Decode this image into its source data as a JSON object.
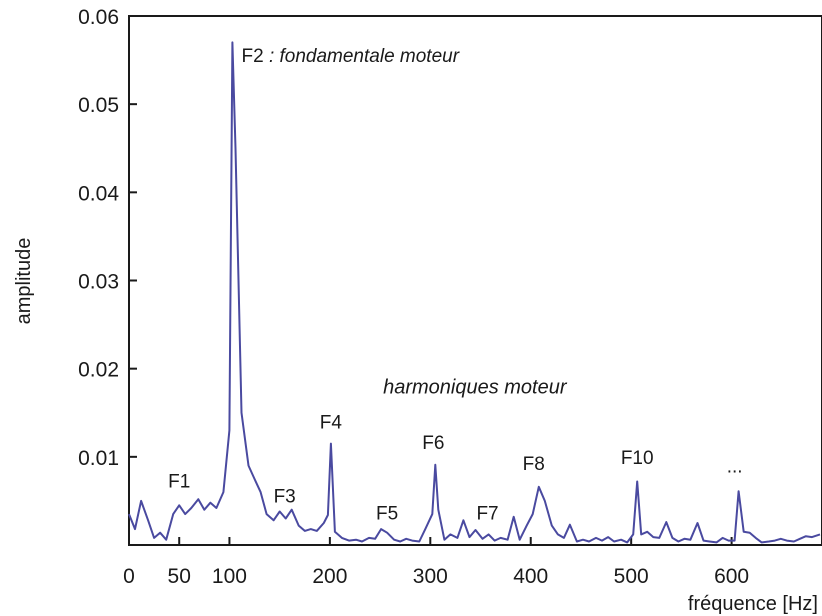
{
  "chart_data": {
    "type": "line",
    "xlabel": "fréquence [Hz]",
    "ylabel": "amplitude",
    "xlim": [
      0,
      690
    ],
    "ylim": [
      0,
      0.06
    ],
    "xticks": [
      0,
      50,
      100,
      200,
      300,
      400,
      500,
      600
    ],
    "xtick_labels": [
      "0",
      "50",
      "100",
      "200",
      "300",
      "400",
      "500",
      "600"
    ],
    "yticks": [
      0.01,
      0.02,
      0.03,
      0.04,
      0.05,
      0.06
    ],
    "ytick_labels": [
      "0.01",
      "0.02",
      "0.03",
      "0.04",
      "0.05",
      "0.06"
    ],
    "grid": false,
    "line_color": "#4a4aa0",
    "series": [
      {
        "x": [
          0,
          6,
          12,
          19,
          25,
          31,
          37,
          44,
          50,
          56,
          62,
          69,
          75,
          81,
          87,
          94,
          100,
          103,
          106,
          112,
          119,
          125,
          131,
          137,
          144,
          150,
          156,
          162,
          169,
          175,
          181,
          187,
          194,
          198,
          201,
          205,
          212,
          219,
          226,
          232,
          239,
          245,
          251,
          257,
          264,
          270,
          276,
          282,
          289,
          295,
          302,
          305,
          308,
          314,
          320,
          327,
          333,
          339,
          345,
          352,
          358,
          364,
          370,
          377,
          383,
          389,
          396,
          402,
          408,
          414,
          421,
          427,
          433,
          439,
          446,
          452,
          458,
          465,
          471,
          477,
          483,
          490,
          496,
          502,
          506,
          510,
          516,
          522,
          528,
          535,
          541,
          547,
          553,
          559,
          566,
          572,
          578,
          585,
          591,
          597,
          603,
          607,
          612,
          618,
          624,
          630,
          637,
          643,
          649,
          655,
          662,
          668,
          674,
          680,
          688
        ],
        "y": [
          0.0035,
          0.0018,
          0.005,
          0.0028,
          0.0008,
          0.0014,
          0.0006,
          0.0035,
          0.0045,
          0.0035,
          0.0042,
          0.0052,
          0.004,
          0.0048,
          0.0042,
          0.006,
          0.013,
          0.057,
          0.045,
          0.015,
          0.009,
          0.0075,
          0.006,
          0.0035,
          0.0028,
          0.0038,
          0.003,
          0.004,
          0.0022,
          0.0016,
          0.0018,
          0.0016,
          0.0025,
          0.0034,
          0.0115,
          0.0015,
          0.0008,
          0.0005,
          0.0006,
          0.0004,
          0.0008,
          0.0007,
          0.0018,
          0.0014,
          0.0006,
          0.0004,
          0.0007,
          0.0005,
          0.0004,
          0.0018,
          0.0035,
          0.0091,
          0.004,
          0.0006,
          0.0012,
          0.0008,
          0.0028,
          0.0009,
          0.0017,
          0.0007,
          0.0012,
          0.0005,
          0.0008,
          0.0006,
          0.0032,
          0.0006,
          0.0022,
          0.0035,
          0.0066,
          0.005,
          0.0022,
          0.0012,
          0.0008,
          0.0023,
          0.0004,
          0.0006,
          0.0004,
          0.0008,
          0.0005,
          0.0009,
          0.0004,
          0.0006,
          0.0003,
          0.0012,
          0.0072,
          0.0012,
          0.0015,
          0.0009,
          0.0008,
          0.0026,
          0.0008,
          0.0004,
          0.0007,
          0.0006,
          0.0025,
          0.0005,
          0.0004,
          0.0003,
          0.0008,
          0.0005,
          0.0005,
          0.0061,
          0.0015,
          0.0014,
          0.0008,
          0.0003,
          0.0004,
          0.0005,
          0.0007,
          0.0005,
          0.0004,
          0.0007,
          0.001,
          0.0009,
          0.0012
        ]
      }
    ],
    "annotations": [
      {
        "text": "F1",
        "x": 50,
        "y": 0.0065,
        "italic": false
      },
      {
        "text": "F2 : fondamentale moteur",
        "x": 112,
        "y": 0.0548,
        "italic": "partial"
      },
      {
        "text": "F3",
        "x": 155,
        "y": 0.0048,
        "italic": false
      },
      {
        "text": "F4",
        "x": 201,
        "y": 0.0132,
        "italic": false
      },
      {
        "text": "F5",
        "x": 257,
        "y": 0.0029,
        "italic": false
      },
      {
        "text": "F6",
        "x": 303,
        "y": 0.0109,
        "italic": false
      },
      {
        "text": "F7",
        "x": 357,
        "y": 0.0029,
        "italic": false
      },
      {
        "text": "F8",
        "x": 403,
        "y": 0.0085,
        "italic": false
      },
      {
        "text": "F10",
        "x": 506,
        "y": 0.0092,
        "italic": false
      },
      {
        "text": "...",
        "x": 603,
        "y": 0.0082,
        "italic": false
      },
      {
        "text": "harmoniques moteur",
        "x": 253,
        "y": 0.0172,
        "italic": true
      }
    ]
  }
}
